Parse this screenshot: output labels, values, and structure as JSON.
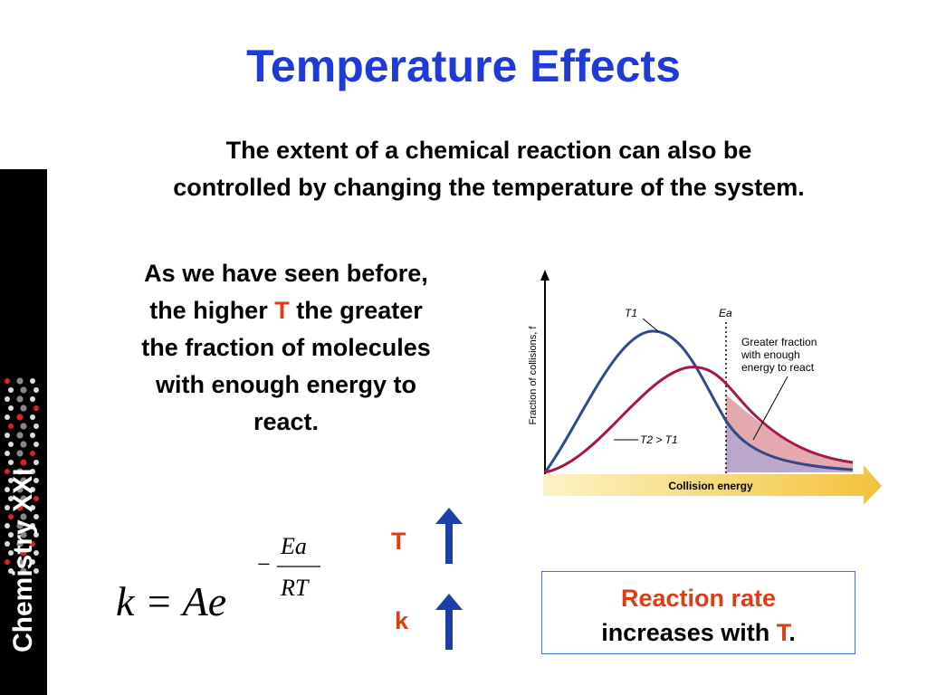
{
  "slide": {
    "title": "Temperature Effects",
    "subtitle_line1": "The extent of a chemical reaction can also be",
    "subtitle_line2": "controlled by changing the temperature of the system.",
    "sidebar_label": "Chemistry XXI"
  },
  "note": {
    "line1": "As we have seen before,",
    "line2_pre": "the higher ",
    "line2_var": "T",
    "line2_post": " the greater",
    "line3": "the fraction of molecules",
    "line4": "with enough energy to",
    "line5": "react."
  },
  "figure": {
    "y_axis_label": "Fraction of collisions, f",
    "x_axis_label": "Collision energy",
    "t1_label": "T1",
    "ea_label": "Ea",
    "t2_label": "T2 > T1",
    "annotation_line1": "Greater fraction",
    "annotation_line2": "with enough",
    "annotation_line3": "energy to react",
    "colors": {
      "t1_curve": "#2e4a8c",
      "t2_curve": "#a8174a",
      "axis_arrow": "#f3c23a"
    }
  },
  "formula": {
    "lhs": "k = Ae",
    "minus": "−",
    "numerator": "Ea",
    "denominator": "RT"
  },
  "indicators": {
    "t_label": "T",
    "k_label": "k",
    "arrow_icon": "up-arrow-icon",
    "arrow_color": "#1b3ea8"
  },
  "conclusion": {
    "line1": "Reaction rate",
    "line2_pre": "increases with ",
    "line2_var": "T",
    "line2_post": "."
  }
}
